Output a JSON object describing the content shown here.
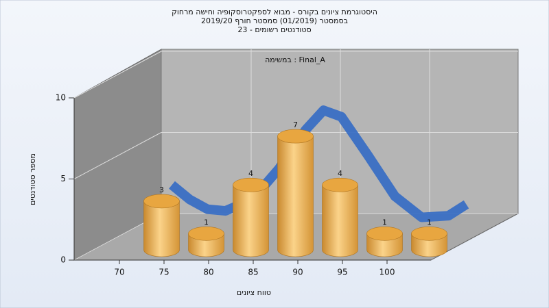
{
  "chart_data": {
    "type": "bar",
    "title": [
      "היסטוגרמת ציונים בקורס - מבוא לספקטרוסקופיה וחישה מרחוק",
      "בסמסטר  (01/2019)  סמסטר חורף 2019/20",
      "סטודנטים רשומים - 23"
    ],
    "annotation": "במשימה : Final_A",
    "y_label": "מספר סטודנטים",
    "x_label": "טווח ציונים",
    "categories": [
      70,
      75,
      80,
      85,
      90,
      95,
      100
    ],
    "values": [
      3,
      1,
      4,
      7,
      4,
      1,
      1
    ],
    "color": "#e8a640",
    "ylim": [
      0,
      10
    ],
    "yticks": [
      0,
      5,
      10
    ],
    "grid": true,
    "curve": {
      "color": "#3a6fc4",
      "x": [
        71,
        73,
        75,
        77,
        80,
        83,
        86,
        88,
        90,
        93,
        96,
        99,
        102,
        104
      ],
      "y": [
        3.2,
        2.3,
        1.7,
        1.6,
        2.3,
        4.2,
        6.6,
        7.8,
        7.4,
        5,
        2.5,
        1.2,
        1.3,
        2
      ]
    }
  }
}
